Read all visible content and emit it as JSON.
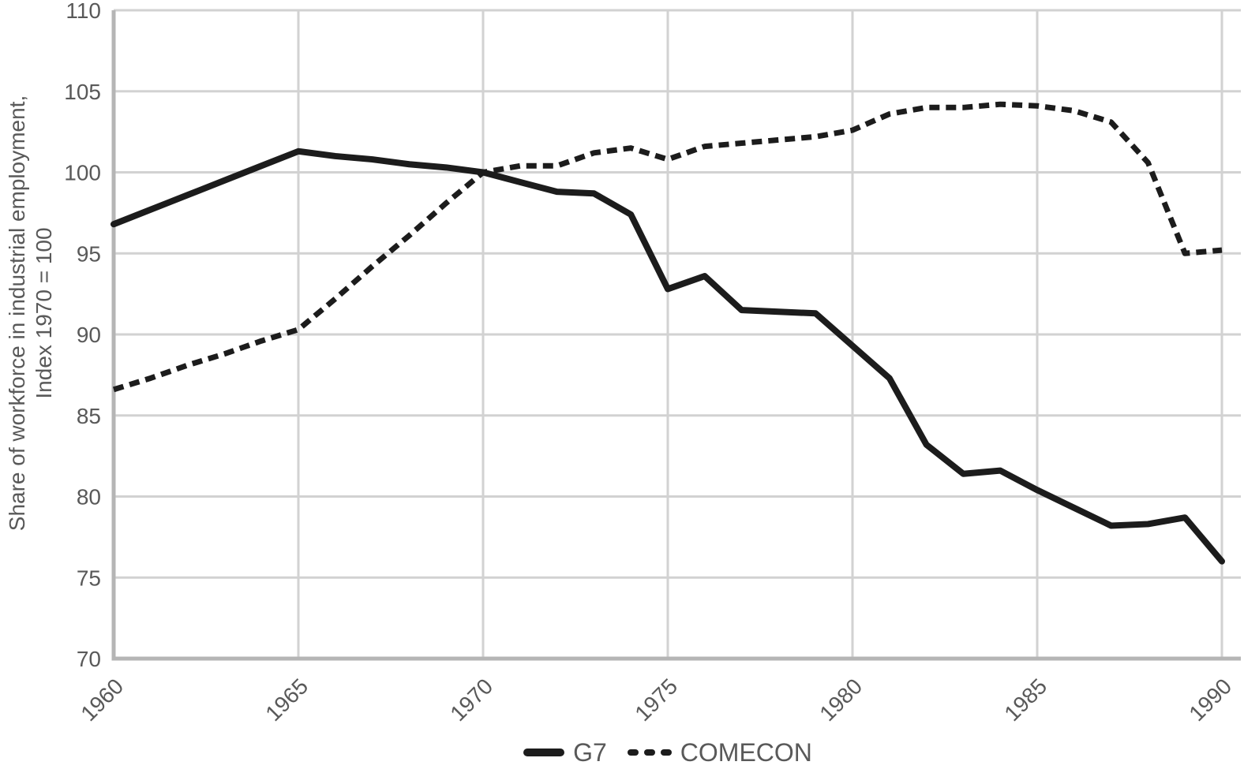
{
  "chart_data": {
    "type": "line",
    "title": "",
    "xlabel": "",
    "ylabel_line1": "Share of workforce in industrial employment,",
    "ylabel_line2": "Index 1970 = 100",
    "xlim": [
      1960,
      1990
    ],
    "ylim": [
      70,
      110
    ],
    "xticks": [
      1960,
      1965,
      1970,
      1975,
      1980,
      1985,
      1990
    ],
    "yticks": [
      70,
      75,
      80,
      85,
      90,
      95,
      100,
      105,
      110
    ],
    "grid": true,
    "legend_position": "bottom-center",
    "x": [
      1960,
      1961,
      1962,
      1963,
      1964,
      1965,
      1966,
      1967,
      1968,
      1969,
      1970,
      1971,
      1972,
      1973,
      1974,
      1975,
      1976,
      1977,
      1978,
      1979,
      1980,
      1981,
      1982,
      1983,
      1984,
      1985,
      1986,
      1987,
      1988,
      1989,
      1990
    ],
    "series": [
      {
        "name": "G7",
        "style": "solid",
        "values": [
          96.8,
          97.7,
          98.6,
          99.5,
          100.4,
          101.3,
          101.0,
          100.8,
          100.5,
          100.3,
          100.0,
          99.4,
          98.8,
          98.7,
          97.4,
          92.8,
          93.6,
          91.5,
          91.4,
          91.3,
          89.3,
          87.3,
          83.2,
          81.4,
          81.6,
          80.4,
          79.3,
          78.2,
          78.3,
          78.7,
          76.0
        ]
      },
      {
        "name": "COMECON",
        "style": "dashed",
        "values": [
          86.6,
          87.3,
          88.1,
          88.8,
          89.6,
          90.3,
          92.2,
          94.2,
          96.1,
          98.1,
          100.0,
          100.4,
          100.4,
          101.2,
          101.5,
          100.8,
          101.6,
          101.8,
          102.0,
          102.2,
          102.6,
          103.6,
          104.0,
          104.0,
          104.2,
          104.1,
          103.8,
          103.1,
          100.6,
          95.0,
          95.2
        ]
      }
    ],
    "colors": {
      "series_line": "#1c1c1c",
      "gridline": "#d2d2d2",
      "axis_line": "#b5b5b5",
      "tick_text": "#595959"
    }
  }
}
